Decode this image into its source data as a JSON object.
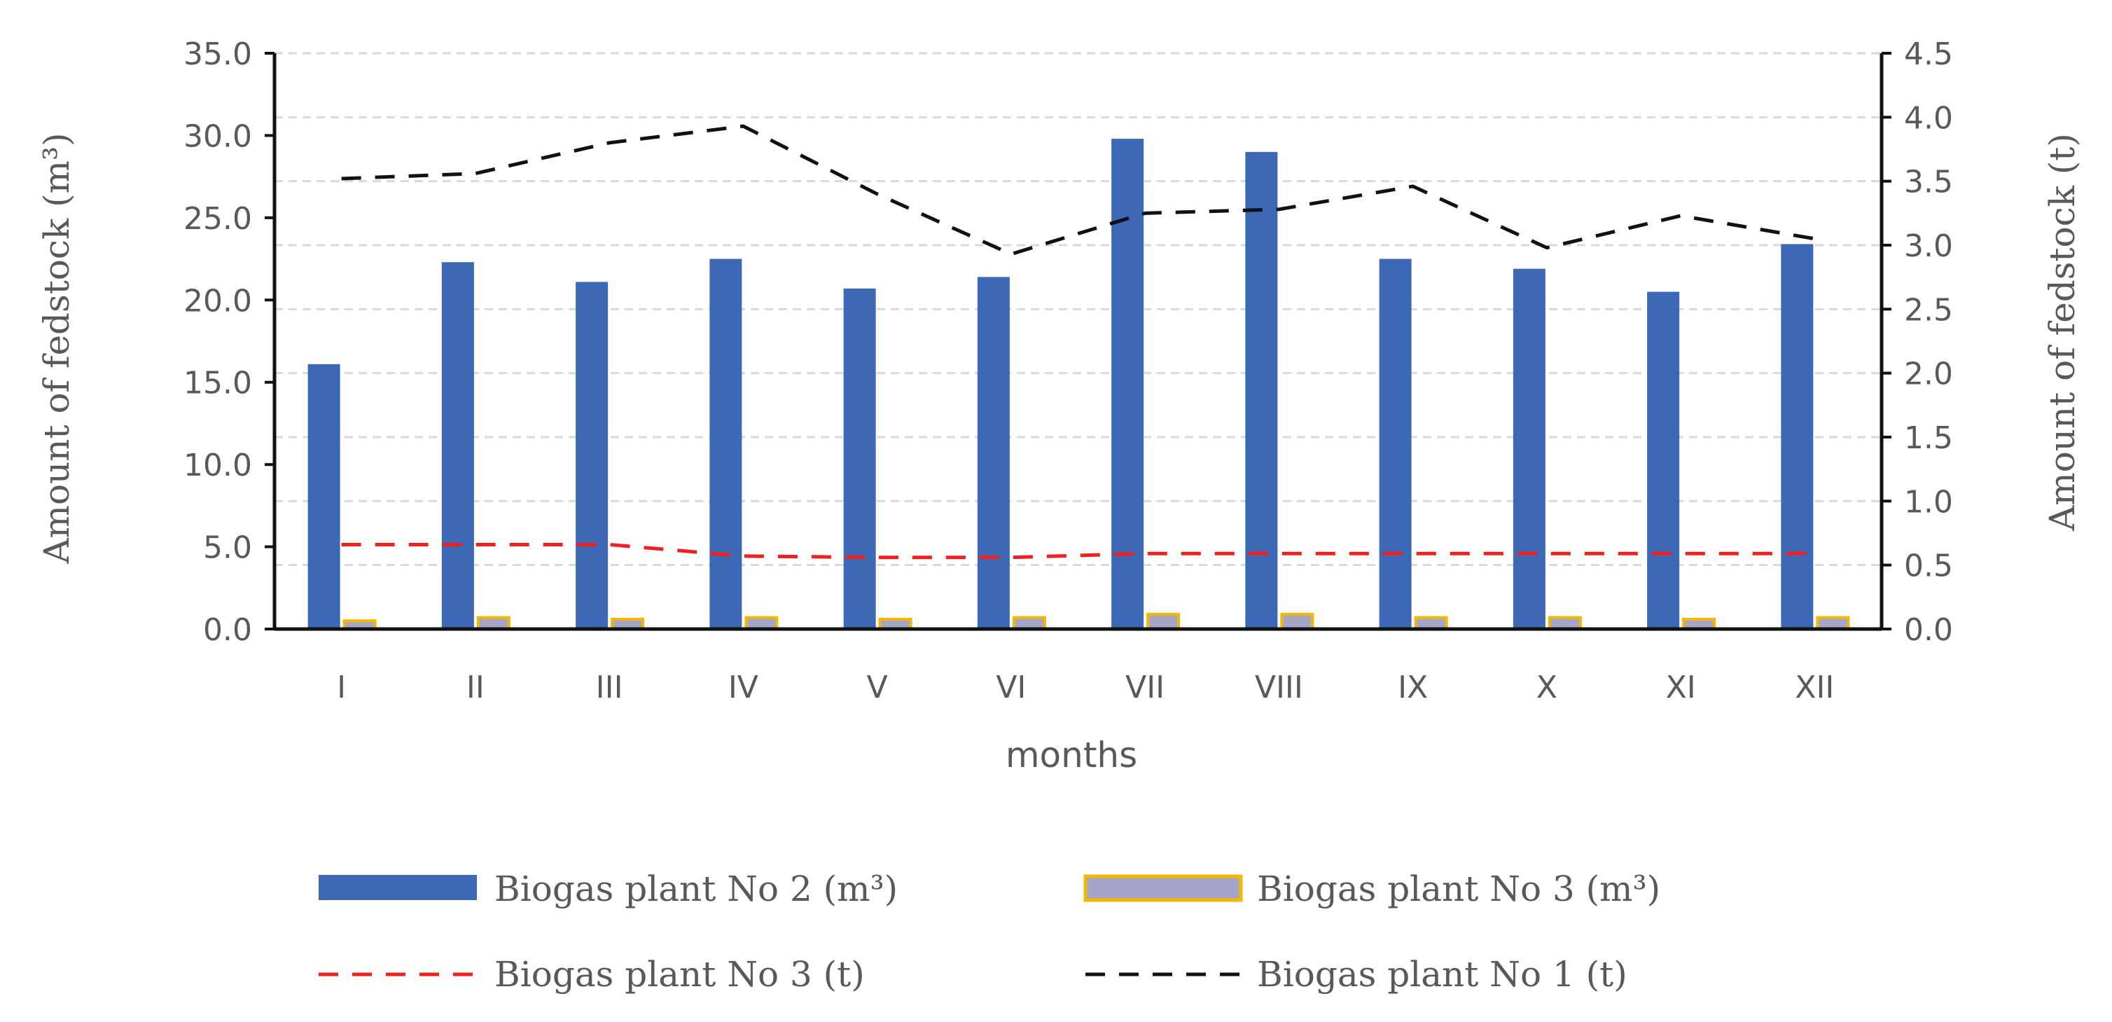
{
  "chart_data": {
    "type": "bar+line",
    "title": "",
    "categories": [
      "I",
      "II",
      "III",
      "IV",
      "V",
      "VI",
      "VII",
      "VIII",
      "IX",
      "X",
      "XI",
      "XII"
    ],
    "xlabel": "months",
    "ylabel_left": "Amount of fedstock (m³)",
    "ylabel_right": "Amount of fedstock (t)",
    "ylim_left": [
      0,
      35
    ],
    "ylim_right": [
      0,
      4.5
    ],
    "left_ticks": [
      "0.0",
      "5.0",
      "10.0",
      "15.0",
      "20.0",
      "25.0",
      "30.0",
      "35.0"
    ],
    "right_ticks": [
      "0.0",
      "0.5",
      "1.0",
      "1.5",
      "2.0",
      "2.5",
      "3.0",
      "3.5",
      "4.0",
      "4.5"
    ],
    "grid": true,
    "legend_position": "bottom",
    "series": [
      {
        "name": "Biogas  plant No 2 (m³)",
        "type": "bar",
        "axis": "left",
        "color": "#3d68b5",
        "values": [
          16.1,
          22.3,
          21.1,
          22.5,
          20.7,
          21.4,
          29.8,
          29.0,
          22.5,
          21.9,
          20.5,
          23.4
        ]
      },
      {
        "name": "Biogas plant No 3 (m³)",
        "type": "bar",
        "axis": "left",
        "color": "#a5a5c8",
        "edge_color": "#f5b800",
        "values": [
          0.5,
          0.7,
          0.6,
          0.7,
          0.6,
          0.7,
          0.9,
          0.9,
          0.7,
          0.7,
          0.6,
          0.7
        ]
      },
      {
        "name": "Biogas plant No 3 (t)",
        "type": "line",
        "axis": "right",
        "style": "dashed",
        "color": "#ee2020",
        "values": [
          0.66,
          0.66,
          0.66,
          0.57,
          0.56,
          0.56,
          0.59,
          0.59,
          0.59,
          0.59,
          0.59,
          0.59
        ]
      },
      {
        "name": "Biogas plant No 1 (t)",
        "type": "line",
        "axis": "right",
        "style": "dashed",
        "color": "#111111",
        "values": [
          3.52,
          3.56,
          3.8,
          3.93,
          3.4,
          2.93,
          3.25,
          3.28,
          3.46,
          2.98,
          3.23,
          3.05
        ]
      }
    ]
  }
}
